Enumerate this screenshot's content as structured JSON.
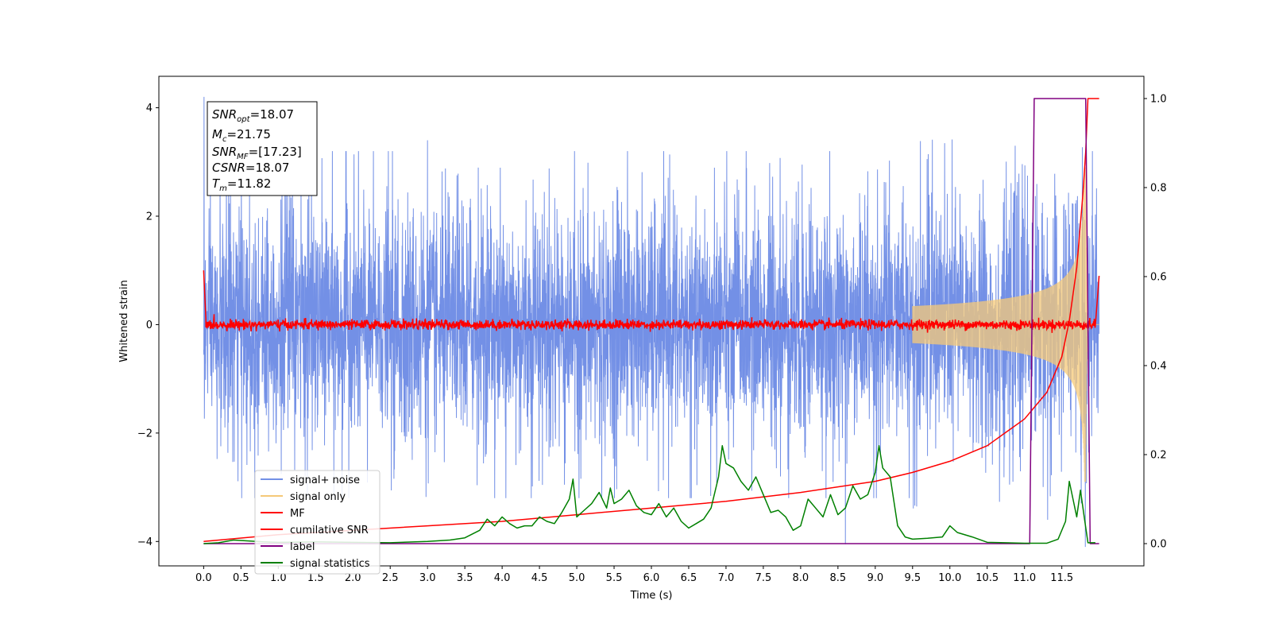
{
  "chart_data": {
    "type": "line",
    "xlabel": "Time (s)",
    "ylabel": "Whitened strain",
    "xlim": [
      -0.6,
      12.6
    ],
    "ylim_left": [
      -4.45,
      4.58
    ],
    "ylim_right": [
      -0.05,
      1.05
    ],
    "x_ticks": [
      "0.0",
      "0.5",
      "1.0",
      "1.5",
      "2.0",
      "2.5",
      "3.0",
      "3.5",
      "4.0",
      "4.5",
      "5.0",
      "5.5",
      "6.0",
      "6.5",
      "7.0",
      "7.5",
      "8.0",
      "8.5",
      "9.0",
      "9.5",
      "10.0",
      "10.5",
      "11.0",
      "11.5"
    ],
    "y_ticks_left": [
      "4",
      "2",
      "0",
      "−2",
      "−4"
    ],
    "y_ticks_right": [
      "1.0",
      "0.8",
      "0.6",
      "0.4",
      "0.2",
      "0.0"
    ],
    "info_box": {
      "snr_opt": {
        "base": "SNR",
        "sub": "opt",
        "value": "=18.07"
      },
      "mc": {
        "base": "M",
        "sub": "c",
        "value": "=21.75"
      },
      "snr_mf": {
        "base": "SNR",
        "sub": "MF",
        "value": "=[17.23]"
      },
      "csnr": {
        "base": "CSNR",
        "sub": "",
        "value": "=18.07"
      },
      "tm": {
        "base": "T",
        "sub": "m",
        "value": "=11.82"
      }
    },
    "legend_position": "lower-left",
    "series": [
      {
        "name": "signal+ noise",
        "axis": "left",
        "color": "#7390e6",
        "description_values": {
          "x_range": [
            0.0,
            12.0
          ],
          "typical_amplitude": 1.5,
          "max_spikes": [
            4.2,
            3.4,
            3.3
          ],
          "min_value": -4.05
        }
      },
      {
        "name": "signal only",
        "axis": "left",
        "color": "#f5c978",
        "chirp": {
          "t_start": 9.5,
          "t_merge": 11.82,
          "peak_amplitude": 2.9
        }
      },
      {
        "name": "MF",
        "axis": "left",
        "color": "#ff0000",
        "points": [
          [
            0.0,
            1.0
          ],
          [
            0.03,
            0.1
          ],
          [
            11.95,
            0.0
          ],
          [
            12.0,
            0.9
          ]
        ]
      },
      {
        "name": "cumilative SNR",
        "axis": "right",
        "color": "#ff0000",
        "points": [
          [
            0.0,
            0.005
          ],
          [
            1.0,
            0.02
          ],
          [
            2.0,
            0.03
          ],
          [
            3.0,
            0.04
          ],
          [
            4.0,
            0.05
          ],
          [
            5.0,
            0.065
          ],
          [
            6.0,
            0.08
          ],
          [
            7.0,
            0.095
          ],
          [
            8.0,
            0.115
          ],
          [
            9.0,
            0.14
          ],
          [
            9.5,
            0.16
          ],
          [
            10.0,
            0.185
          ],
          [
            10.5,
            0.22
          ],
          [
            11.0,
            0.28
          ],
          [
            11.3,
            0.34
          ],
          [
            11.5,
            0.42
          ],
          [
            11.6,
            0.5
          ],
          [
            11.7,
            0.62
          ],
          [
            11.78,
            0.78
          ],
          [
            11.82,
            0.88
          ],
          [
            11.85,
            1.0
          ],
          [
            12.0,
            1.0
          ]
        ]
      },
      {
        "name": "label",
        "axis": "right",
        "color": "#800080",
        "points": [
          [
            0.0,
            0.0
          ],
          [
            11.07,
            0.0
          ],
          [
            11.13,
            1.0
          ],
          [
            11.82,
            1.0
          ],
          [
            11.88,
            0.0
          ],
          [
            12.0,
            0.0
          ]
        ]
      },
      {
        "name": "signal statistics",
        "axis": "right",
        "color": "#008000",
        "points": [
          [
            0.0,
            0.0
          ],
          [
            0.2,
            0.002
          ],
          [
            0.4,
            0.008
          ],
          [
            0.6,
            0.006
          ],
          [
            0.8,
            0.004
          ],
          [
            1.0,
            0.003
          ],
          [
            1.5,
            0.004
          ],
          [
            2.0,
            0.003
          ],
          [
            2.5,
            0.002
          ],
          [
            3.0,
            0.005
          ],
          [
            3.3,
            0.008
          ],
          [
            3.5,
            0.013
          ],
          [
            3.7,
            0.03
          ],
          [
            3.8,
            0.055
          ],
          [
            3.9,
            0.04
          ],
          [
            4.0,
            0.06
          ],
          [
            4.1,
            0.045
          ],
          [
            4.2,
            0.035
          ],
          [
            4.3,
            0.04
          ],
          [
            4.4,
            0.04
          ],
          [
            4.5,
            0.06
          ],
          [
            4.6,
            0.05
          ],
          [
            4.7,
            0.045
          ],
          [
            4.8,
            0.07
          ],
          [
            4.9,
            0.1
          ],
          [
            4.95,
            0.145
          ],
          [
            5.0,
            0.06
          ],
          [
            5.1,
            0.075
          ],
          [
            5.2,
            0.09
          ],
          [
            5.3,
            0.115
          ],
          [
            5.4,
            0.08
          ],
          [
            5.45,
            0.125
          ],
          [
            5.5,
            0.09
          ],
          [
            5.6,
            0.1
          ],
          [
            5.7,
            0.12
          ],
          [
            5.8,
            0.085
          ],
          [
            5.9,
            0.07
          ],
          [
            6.0,
            0.065
          ],
          [
            6.1,
            0.09
          ],
          [
            6.2,
            0.06
          ],
          [
            6.3,
            0.08
          ],
          [
            6.4,
            0.05
          ],
          [
            6.5,
            0.035
          ],
          [
            6.6,
            0.045
          ],
          [
            6.7,
            0.055
          ],
          [
            6.8,
            0.08
          ],
          [
            6.9,
            0.15
          ],
          [
            6.95,
            0.22
          ],
          [
            7.0,
            0.18
          ],
          [
            7.1,
            0.17
          ],
          [
            7.2,
            0.14
          ],
          [
            7.3,
            0.12
          ],
          [
            7.4,
            0.15
          ],
          [
            7.5,
            0.11
          ],
          [
            7.6,
            0.07
          ],
          [
            7.7,
            0.075
          ],
          [
            7.8,
            0.06
          ],
          [
            7.9,
            0.03
          ],
          [
            8.0,
            0.04
          ],
          [
            8.1,
            0.1
          ],
          [
            8.2,
            0.08
          ],
          [
            8.3,
            0.06
          ],
          [
            8.4,
            0.11
          ],
          [
            8.5,
            0.065
          ],
          [
            8.6,
            0.08
          ],
          [
            8.7,
            0.13
          ],
          [
            8.8,
            0.1
          ],
          [
            8.9,
            0.11
          ],
          [
            9.0,
            0.16
          ],
          [
            9.05,
            0.22
          ],
          [
            9.1,
            0.17
          ],
          [
            9.2,
            0.15
          ],
          [
            9.3,
            0.04
          ],
          [
            9.4,
            0.015
          ],
          [
            9.5,
            0.01
          ],
          [
            9.7,
            0.012
          ],
          [
            9.9,
            0.015
          ],
          [
            10.0,
            0.04
          ],
          [
            10.1,
            0.025
          ],
          [
            10.3,
            0.015
          ],
          [
            10.5,
            0.003
          ],
          [
            11.0,
            0.001
          ],
          [
            11.3,
            0.001
          ],
          [
            11.45,
            0.01
          ],
          [
            11.55,
            0.05
          ],
          [
            11.6,
            0.14
          ],
          [
            11.65,
            0.1
          ],
          [
            11.7,
            0.06
          ],
          [
            11.75,
            0.12
          ],
          [
            11.8,
            0.06
          ],
          [
            11.85,
            0.002
          ],
          [
            11.95,
            0.002
          ]
        ]
      }
    ]
  }
}
